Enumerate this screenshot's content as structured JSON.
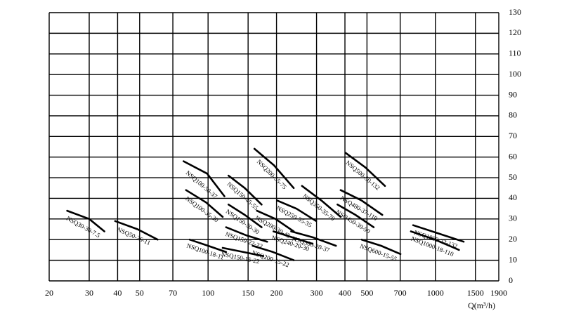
{
  "chart_data": {
    "type": "line",
    "xscale": "log",
    "grid": true,
    "color": "#000000",
    "xlabel": "Q(m³/h)",
    "xlim": [
      20,
      1900
    ],
    "xticks": [
      20,
      30,
      40,
      50,
      70,
      100,
      150,
      200,
      300,
      400,
      500,
      700,
      1000,
      1500,
      1900
    ],
    "ylim": [
      0,
      130
    ],
    "yticks": [
      0,
      10,
      20,
      30,
      40,
      50,
      60,
      70,
      80,
      90,
      100,
      110,
      120,
      130
    ],
    "series": [
      {
        "name": "NSQ30-30-7.5",
        "x": [
          24,
          30,
          35
        ],
        "values": [
          34,
          30,
          24
        ]
      },
      {
        "name": "NSQ50-26-11",
        "x": [
          39,
          49,
          60
        ],
        "values": [
          29,
          25,
          20
        ]
      },
      {
        "name": "NSQ100-50-37",
        "x": [
          78,
          99,
          118
        ],
        "values": [
          58,
          52,
          41
        ]
      },
      {
        "name": "NSQ100-35-30",
        "x": [
          80,
          98,
          116
        ],
        "values": [
          44,
          38,
          31
        ]
      },
      {
        "name": "NSQ100-18-11",
        "x": [
          83,
          100,
          120
        ],
        "values": [
          20,
          17,
          14
        ]
      },
      {
        "name": "NSQ150-45-55",
        "x": [
          123,
          145,
          172
        ],
        "values": [
          51,
          45,
          37
        ]
      },
      {
        "name": "NSQ150-30-30",
        "x": [
          123,
          145,
          172
        ],
        "values": [
          37,
          32,
          26
        ]
      },
      {
        "name": "NSQ150-22-22",
        "x": [
          120,
          148,
          182
        ],
        "values": [
          26,
          22,
          19
        ]
      },
      {
        "name": "NSQ150-15-22",
        "x": [
          116,
          143,
          175
        ],
        "values": [
          16,
          14,
          12
        ]
      },
      {
        "name": "NSQ200-55-75",
        "x": [
          160,
          195,
          238
        ],
        "values": [
          64,
          56,
          45
        ]
      },
      {
        "name": "NSQ200-30-45",
        "x": [
          164,
          198,
          238
        ],
        "values": [
          34,
          30,
          24
        ]
      },
      {
        "name": "NSQ200-15-22",
        "x": [
          157,
          193,
          238
        ],
        "values": [
          17,
          14,
          10
        ]
      },
      {
        "name": "NSQ250-35-35",
        "x": [
          201,
          245,
          299
        ],
        "values": [
          39,
          35,
          29
        ]
      },
      {
        "name": "NSQ240-20-30",
        "x": [
          194,
          236,
          288
        ],
        "values": [
          24,
          21,
          18
        ]
      },
      {
        "name": "NSQ300-20-37",
        "x": [
          232,
          291,
          365
        ],
        "values": [
          24,
          21,
          17
        ]
      },
      {
        "name": "NSQ350-35-70",
        "x": [
          259,
          315,
          383
        ],
        "values": [
          46,
          39,
          31
        ]
      },
      {
        "name": "NSQ500-50-132",
        "x": [
          403,
          492,
          600
        ],
        "values": [
          62,
          55,
          46
        ]
      },
      {
        "name": "NSQ480-37-110",
        "x": [
          383,
          473,
          584
        ],
        "values": [
          44,
          39,
          32
        ]
      },
      {
        "name": "NSQ450-30-90",
        "x": [
          371,
          445,
          535
        ],
        "values": [
          37,
          32,
          26
        ]
      },
      {
        "name": "NSQ600-15-55",
        "x": [
          474,
          577,
          702
        ],
        "values": [
          20,
          17,
          13
        ]
      },
      {
        "name": "NSQ1000-22-132",
        "x": [
          798,
          1030,
          1331
        ],
        "values": [
          27,
          23,
          19
        ]
      },
      {
        "name": "NSQ1000-18-110",
        "x": [
          780,
          995,
          1270
        ],
        "values": [
          24,
          20,
          15
        ]
      }
    ]
  }
}
